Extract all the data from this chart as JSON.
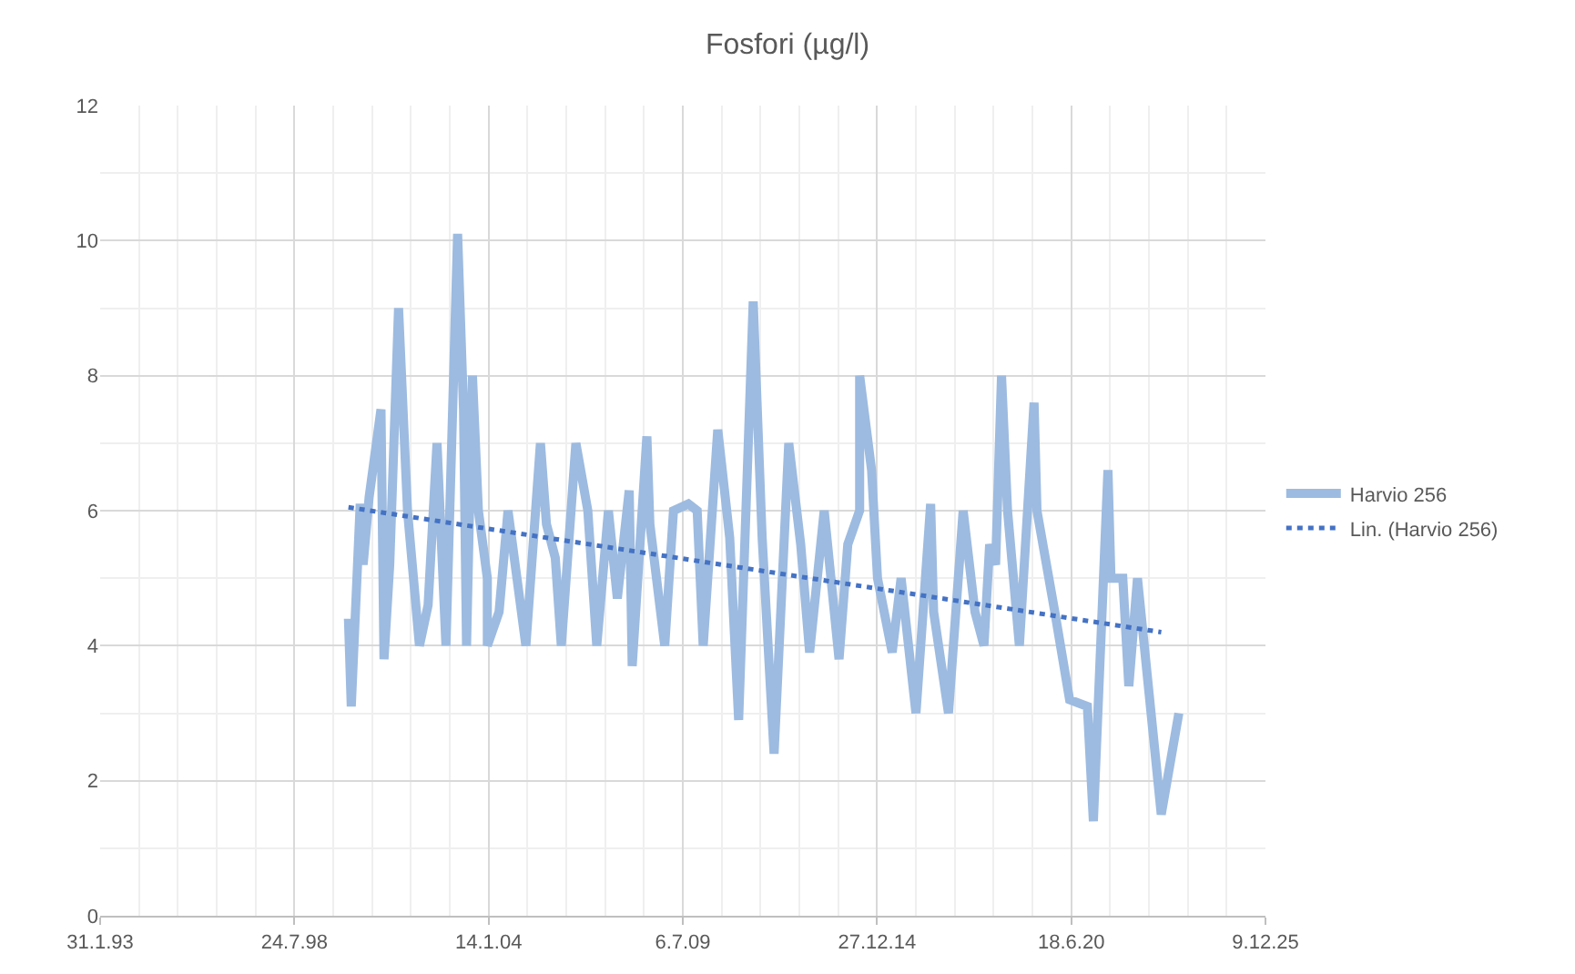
{
  "chart_data": {
    "type": "line",
    "title": "Fosfori (µg/l)",
    "x": [
      "2000-02",
      "2000-03",
      "2000-06",
      "2000-07",
      "2000-09",
      "2001-01",
      "2001-02",
      "2001-04",
      "2001-07",
      "2001-10",
      "2002-02",
      "2002-05",
      "2002-08",
      "2002-11",
      "2003-03",
      "2003-05",
      "2003-06",
      "2003-08",
      "2003-10",
      "2004-01",
      "2004-01",
      "2004-05",
      "2004-08",
      "2004-11",
      "2005-02",
      "2005-07",
      "2005-09",
      "2005-12",
      "2006-02",
      "2006-07",
      "2006-11",
      "2007-02",
      "2007-06",
      "2007-09",
      "2008-01",
      "2008-02",
      "2008-07",
      "2008-08",
      "2009-01",
      "2009-04",
      "2009-09",
      "2009-12",
      "2010-02",
      "2010-07",
      "2010-11",
      "2011-02",
      "2011-07",
      "2011-10",
      "2012-02",
      "2012-07",
      "2012-11",
      "2013-02",
      "2013-07",
      "2013-12",
      "2014-03",
      "2014-07",
      "2014-07",
      "2014-11",
      "2015-01",
      "2015-06",
      "2015-09",
      "2016-02",
      "2016-07",
      "2016-08",
      "2017-01",
      "2017-06",
      "2017-10",
      "2018-01",
      "2018-03",
      "2018-05",
      "2018-07",
      "2018-09",
      "2019-01",
      "2019-06",
      "2019-07",
      "2020-01",
      "2020-06",
      "2020-12",
      "2021-02",
      "2021-07",
      "2021-08",
      "2021-12",
      "2022-02",
      "2022-05",
      "2023-01",
      "2023-07"
    ],
    "series": [
      {
        "name": "Harvio 256",
        "color": "#9dbbe0",
        "line_style": "solid",
        "values": [
          4.4,
          3.1,
          6.1,
          5.2,
          6.2,
          7.5,
          3.8,
          5.2,
          9.0,
          6.0,
          4.0,
          4.6,
          7.0,
          4.0,
          10.1,
          7.5,
          4.0,
          8.0,
          6.0,
          5.0,
          4.0,
          4.5,
          6.0,
          5.0,
          4.0,
          7.0,
          5.8,
          5.3,
          4.0,
          7.0,
          6.0,
          4.0,
          6.0,
          4.7,
          6.3,
          3.7,
          7.1,
          5.8,
          4.0,
          6.0,
          6.1,
          6.0,
          4.0,
          7.2,
          5.6,
          2.9,
          9.1,
          5.6,
          2.4,
          7.0,
          5.5,
          3.9,
          6.0,
          3.8,
          5.5,
          6.0,
          8.0,
          6.6,
          5.0,
          3.9,
          5.0,
          3.0,
          6.1,
          4.5,
          3.0,
          6.0,
          4.5,
          4.0,
          5.5,
          5.2,
          8.0,
          6.0,
          4.0,
          7.6,
          6.0,
          4.5,
          3.2,
          3.1,
          1.4,
          6.6,
          5.0,
          5.0,
          3.4,
          5.0,
          1.5,
          3.0
        ]
      },
      {
        "name": "Lin. (Harvio 256)",
        "color": "#4472c4",
        "line_style": "dotted",
        "x": [
          "2000-02",
          "2023-01"
        ],
        "values": [
          6.05,
          4.2
        ]
      }
    ],
    "xlim": [
      "1993-01-31",
      "2025-12-09"
    ],
    "xticks": [
      {
        "value": "1993-01-31",
        "label": "31.1.93"
      },
      {
        "value": "1998-07-24",
        "label": "24.7.98"
      },
      {
        "value": "2004-01-14",
        "label": "14.1.04"
      },
      {
        "value": "2009-07-06",
        "label": "6.7.09"
      },
      {
        "value": "2014-12-27",
        "label": "27.12.14"
      },
      {
        "value": "2020-06-18",
        "label": "18.6.20"
      },
      {
        "value": "2025-12-09",
        "label": "9.12.25"
      }
    ],
    "ylim": [
      0,
      12
    ],
    "yticks": [
      0,
      2,
      4,
      6,
      8,
      10,
      12
    ],
    "grid": true,
    "legend": "right",
    "marker": "none"
  }
}
